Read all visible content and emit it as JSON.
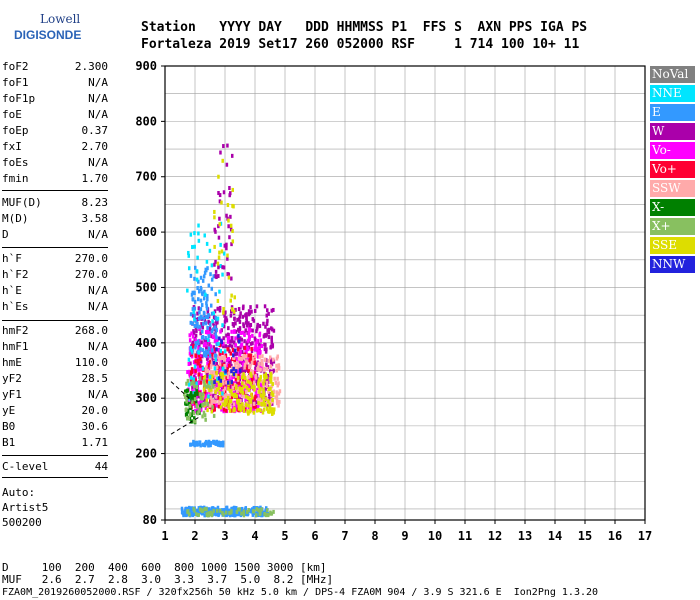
{
  "logo": {
    "line1": "Lowell",
    "line2": "DIGISONDE"
  },
  "header": {
    "labels": "Station   YYYY DAY   DDD HHMMSS P1  FFS S  AXN PPS IGA PS",
    "values": "Fortaleza 2019 Set17 260 052000 RSF     1 714 100 10+ 11"
  },
  "params": [
    {
      "name": "foF2",
      "value": "2.300"
    },
    {
      "name": "foF1",
      "value": "N/A"
    },
    {
      "name": "foF1p",
      "value": "N/A"
    },
    {
      "name": "foE",
      "value": "N/A"
    },
    {
      "name": "foEp",
      "value": "0.37"
    },
    {
      "name": "fxI",
      "value": "2.70"
    },
    {
      "name": "foEs",
      "value": "N/A"
    },
    {
      "name": "fmin",
      "value": "1.70"
    },
    {
      "name": "MUF(D)",
      "value": "8.23"
    },
    {
      "name": "M(D)",
      "value": "3.58"
    },
    {
      "name": "D",
      "value": "N/A"
    },
    {
      "name": "h`F",
      "value": "270.0"
    },
    {
      "name": "h`F2",
      "value": "270.0"
    },
    {
      "name": "h`E",
      "value": "N/A"
    },
    {
      "name": "h`Es",
      "value": "N/A"
    },
    {
      "name": "hmF2",
      "value": "268.0"
    },
    {
      "name": "hmF1",
      "value": "N/A"
    },
    {
      "name": "hmE",
      "value": "110.0"
    },
    {
      "name": "yF2",
      "value": "28.5"
    },
    {
      "name": "yF1",
      "value": "N/A"
    },
    {
      "name": "yE",
      "value": "20.0"
    },
    {
      "name": "B0",
      "value": "30.6"
    },
    {
      "name": "B1",
      "value": "1.71"
    },
    {
      "name": "C-level",
      "value": "44"
    }
  ],
  "autoscale": {
    "line1": "Auto:",
    "line2": "Artist5",
    "line3": "500200"
  },
  "legend": [
    {
      "label": "NoVal",
      "color": "#808080"
    },
    {
      "label": "NNE",
      "color": "#00e5ff"
    },
    {
      "label": "E",
      "color": "#3399ff"
    },
    {
      "label": "W",
      "color": "#aa00aa"
    },
    {
      "label": "Vo-",
      "color": "#ff00ff"
    },
    {
      "label": "Vo+",
      "color": "#ff0033"
    },
    {
      "label": "SSW",
      "color": "#ffaaaa"
    },
    {
      "label": "X-",
      "color": "#008000"
    },
    {
      "label": "X+",
      "color": "#88c060"
    },
    {
      "label": "SSE",
      "color": "#dddd00"
    },
    {
      "label": "NNW",
      "color": "#2222dd"
    }
  ],
  "footer": {
    "d_row": "D     100  200  400  600  800 1000 1500 3000 [km]",
    "muf_row": "MUF   2.6  2.7  2.8  3.0  3.3  3.7  5.0  8.2 [MHz]",
    "info": "FZA0M_2019260052000.RSF / 320fx256h 50 kHz 5.0 km / DPS-4 FZA0M 904 / 3.9 S 321.6 E  Ion2Png 1.3.20"
  },
  "chart_data": {
    "type": "scatter",
    "title": "",
    "xlabel": "",
    "ylabel": "",
    "xlim": [
      1,
      17
    ],
    "ylim": [
      80,
      900
    ],
    "xticks": [
      1,
      2,
      3,
      4,
      5,
      6,
      7,
      8,
      9,
      10,
      11,
      12,
      13,
      14,
      15,
      16,
      17
    ],
    "yticks": [
      80,
      200,
      300,
      400,
      500,
      600,
      700,
      800,
      900
    ],
    "grid": true,
    "legend_position": "right",
    "clusters": [
      {
        "series": "W",
        "color": "#aa00aa",
        "xmin": 1.8,
        "xmax": 4.6,
        "hmin": 290,
        "hmax": 470,
        "n": 520
      },
      {
        "series": "Vo-",
        "color": "#ff00ff",
        "xmin": 1.7,
        "xmax": 4.2,
        "hmin": 280,
        "hmax": 430,
        "n": 320
      },
      {
        "series": "Vo+",
        "color": "#ff0033",
        "xmin": 1.8,
        "xmax": 4.0,
        "hmin": 280,
        "hmax": 400,
        "n": 160
      },
      {
        "series": "SSW",
        "color": "#ffaaaa",
        "xmin": 2.3,
        "xmax": 4.8,
        "hmin": 290,
        "hmax": 380,
        "n": 220
      },
      {
        "series": "SSE",
        "color": "#dddd00",
        "xmin": 2.2,
        "xmax": 4.6,
        "hmin": 275,
        "hmax": 350,
        "n": 180
      },
      {
        "series": "E",
        "color": "#3399ff",
        "xmin": 1.8,
        "xmax": 2.7,
        "hmin": 380,
        "hmax": 540,
        "n": 110
      },
      {
        "series": "NNE",
        "color": "#00e5ff",
        "xmin": 1.7,
        "xmax": 3.0,
        "hmin": 300,
        "hmax": 620,
        "n": 60
      },
      {
        "series": "X-",
        "color": "#008000",
        "xmin": 1.6,
        "xmax": 2.2,
        "hmin": 260,
        "hmax": 320,
        "n": 40
      },
      {
        "series": "X+",
        "color": "#88c060",
        "xmin": 1.6,
        "xmax": 2.6,
        "hmin": 260,
        "hmax": 340,
        "n": 50
      },
      {
        "series": "NNW",
        "color": "#2222dd",
        "xmin": 2.5,
        "xmax": 3.5,
        "hmin": 330,
        "hmax": 420,
        "n": 20
      },
      {
        "series": "E",
        "color": "#3399ff",
        "xmin": 1.8,
        "xmax": 2.9,
        "hmin": 218,
        "hmax": 225,
        "n": 50
      },
      {
        "series": "E",
        "color": "#3399ff",
        "xmin": 1.5,
        "xmax": 4.4,
        "hmin": 92,
        "hmax": 106,
        "n": 260
      },
      {
        "series": "X+",
        "color": "#88c060",
        "xmin": 1.7,
        "xmax": 4.6,
        "hmin": 92,
        "hmax": 104,
        "n": 60
      },
      {
        "series": "W",
        "color": "#aa00aa",
        "xmin": 2.6,
        "xmax": 3.2,
        "hmin": 500,
        "hmax": 760,
        "n": 40
      },
      {
        "series": "SSE",
        "color": "#dddd00",
        "xmin": 2.6,
        "xmax": 3.3,
        "hmin": 450,
        "hmax": 740,
        "n": 30
      }
    ],
    "trace_lines": [
      {
        "points": [
          [
            1.2,
            235
          ],
          [
            2.2,
            268
          ]
        ]
      },
      {
        "points": [
          [
            1.2,
            330
          ],
          [
            1.9,
            295
          ]
        ]
      }
    ]
  }
}
